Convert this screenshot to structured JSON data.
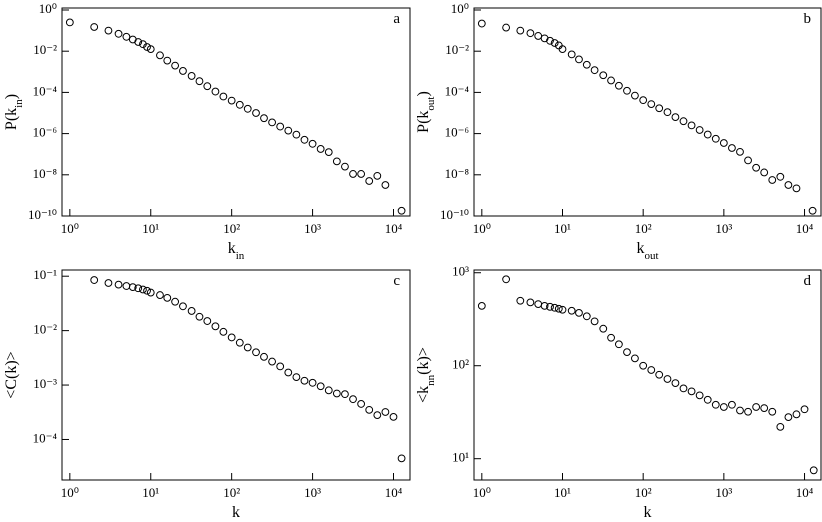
{
  "chart_data": [
    {
      "type": "scatter",
      "panel_label": "a",
      "xlabel": [
        "k",
        "in"
      ],
      "ylabel": [
        "P(k",
        "in",
        ")"
      ],
      "xscale": "log",
      "yscale": "log",
      "color": "#000000",
      "xlim": [
        0.8,
        16000
      ],
      "ylim": [
        1e-10,
        1.25
      ],
      "xticks": [
        {
          "value": 1,
          "label": "10⁰"
        },
        {
          "value": 10,
          "label": "10¹"
        },
        {
          "value": 100,
          "label": "10²"
        },
        {
          "value": 1000,
          "label": "10³"
        },
        {
          "value": 10000,
          "label": "10⁴"
        }
      ],
      "yticks": [
        {
          "value": 1e-10,
          "label": "10⁻¹⁰"
        },
        {
          "value": 1e-08,
          "label": "10⁻⁸"
        },
        {
          "value": 1e-06,
          "label": "10⁻⁶"
        },
        {
          "value": 0.0001,
          "label": "10⁻⁴"
        },
        {
          "value": 0.01,
          "label": "10⁻²"
        },
        {
          "value": 1,
          "label": "10⁰"
        }
      ],
      "x": [
        1,
        2,
        3,
        4,
        5,
        6,
        7,
        8,
        9,
        10,
        13,
        16,
        20,
        25,
        32,
        40,
        50,
        63,
        79,
        100,
        126,
        158,
        200,
        251,
        316,
        398,
        501,
        631,
        794,
        1000,
        1259,
        1585,
        1995,
        2512,
        3162,
        3981,
        5012,
        6310,
        7943,
        12589
      ],
      "values": [
        0.25,
        0.15,
        0.1,
        0.07,
        0.05,
        0.037,
        0.028,
        0.022,
        0.016,
        0.0126,
        0.0063,
        0.0035,
        0.002,
        0.0011,
        0.00063,
        0.00035,
        0.0002,
        0.00011,
        6.3e-05,
        4e-05,
        2.5e-05,
        1.6e-05,
        1e-05,
        5.6e-06,
        3.5e-06,
        2.2e-06,
        1.4e-06,
        8.9e-07,
        5e-07,
        3.2e-07,
        1.8e-07,
        1.26e-07,
        4.5e-08,
        2.5e-08,
        1.1e-08,
        1.1e-08,
        5e-09,
        8.9e-09,
        3.2e-09,
        1.8e-10
      ]
    },
    {
      "type": "scatter",
      "panel_label": "b",
      "xlabel": [
        "k",
        "out"
      ],
      "ylabel": [
        "P(k",
        "out",
        ")"
      ],
      "xscale": "log",
      "yscale": "log",
      "color": "#000000",
      "xlim": [
        0.8,
        16000
      ],
      "ylim": [
        1e-10,
        1.25
      ],
      "xticks": [
        {
          "value": 1,
          "label": "10⁰"
        },
        {
          "value": 10,
          "label": "10¹"
        },
        {
          "value": 100,
          "label": "10²"
        },
        {
          "value": 1000,
          "label": "10³"
        },
        {
          "value": 10000,
          "label": "10⁴"
        }
      ],
      "yticks": [
        {
          "value": 1e-10,
          "label": "10⁻¹⁰"
        },
        {
          "value": 1e-08,
          "label": "10⁻⁸"
        },
        {
          "value": 1e-06,
          "label": "10⁻⁶"
        },
        {
          "value": 0.0001,
          "label": "10⁻⁴"
        },
        {
          "value": 0.01,
          "label": "10⁻²"
        },
        {
          "value": 1,
          "label": "10⁰"
        }
      ],
      "x": [
        1,
        2,
        3,
        4,
        5,
        6,
        7,
        8,
        9,
        10,
        13,
        16,
        20,
        25,
        32,
        40,
        50,
        63,
        79,
        100,
        126,
        158,
        200,
        251,
        316,
        398,
        501,
        631,
        794,
        1000,
        1259,
        1585,
        1995,
        2512,
        3162,
        3981,
        5012,
        6310,
        7943,
        12589
      ],
      "values": [
        0.22,
        0.14,
        0.1,
        0.075,
        0.055,
        0.042,
        0.032,
        0.025,
        0.019,
        0.0126,
        0.007,
        0.004,
        0.0022,
        0.0012,
        0.00068,
        0.00038,
        0.00021,
        0.00012,
        7e-05,
        4.2e-05,
        2.7e-05,
        1.7e-05,
        1.1e-05,
        6.3e-06,
        4e-06,
        2.5e-06,
        1.5e-06,
        9e-07,
        5.6e-07,
        3.5e-07,
        2e-07,
        1.3e-07,
        5e-08,
        2.2e-08,
        1.3e-08,
        5.6e-09,
        8e-09,
        3.2e-09,
        2.2e-09,
        1.8e-10
      ]
    },
    {
      "type": "scatter",
      "panel_label": "c",
      "xlabel": [
        "k"
      ],
      "ylabel": [
        "<C(k)>"
      ],
      "xscale": "log",
      "yscale": "log",
      "color": "#000000",
      "xlim": [
        0.8,
        16000
      ],
      "ylim": [
        1.8e-05,
        0.13
      ],
      "xticks": [
        {
          "value": 1,
          "label": "10⁰"
        },
        {
          "value": 10,
          "label": "10¹"
        },
        {
          "value": 100,
          "label": "10²"
        },
        {
          "value": 1000,
          "label": "10³"
        },
        {
          "value": 10000,
          "label": "10⁴"
        }
      ],
      "yticks": [
        {
          "value": 0.0001,
          "label": "10⁻⁴"
        },
        {
          "value": 0.001,
          "label": "10⁻³"
        },
        {
          "value": 0.01,
          "label": "10⁻²"
        },
        {
          "value": 0.1,
          "label": "10⁻¹"
        }
      ],
      "x": [
        2,
        3,
        4,
        5,
        6,
        7,
        8,
        9,
        10,
        13,
        16,
        20,
        25,
        32,
        40,
        50,
        63,
        79,
        100,
        126,
        158,
        200,
        251,
        316,
        398,
        501,
        631,
        794,
        1000,
        1259,
        1585,
        1995,
        2512,
        3162,
        3981,
        5012,
        6310,
        7943,
        10000,
        12589
      ],
      "values": [
        0.085,
        0.075,
        0.07,
        0.066,
        0.063,
        0.06,
        0.057,
        0.054,
        0.05,
        0.045,
        0.04,
        0.034,
        0.028,
        0.023,
        0.018,
        0.015,
        0.012,
        0.0095,
        0.0075,
        0.006,
        0.0049,
        0.004,
        0.0033,
        0.0027,
        0.0022,
        0.0017,
        0.0014,
        0.0012,
        0.0011,
        0.00095,
        0.0008,
        0.0007,
        0.00068,
        0.00055,
        0.00045,
        0.00035,
        0.00028,
        0.00032,
        0.00026,
        4.5e-05
      ]
    },
    {
      "type": "scatter",
      "panel_label": "d",
      "xlabel": [
        "k"
      ],
      "ylabel": [
        "<k",
        "nn",
        "(k)>"
      ],
      "xscale": "log",
      "yscale": "log",
      "color": "#000000",
      "xlim": [
        0.8,
        16000
      ],
      "ylim": [
        5.9,
        1070
      ],
      "xticks": [
        {
          "value": 1,
          "label": "10⁰"
        },
        {
          "value": 10,
          "label": "10¹"
        },
        {
          "value": 100,
          "label": "10²"
        },
        {
          "value": 1000,
          "label": "10³"
        },
        {
          "value": 10000,
          "label": "10⁴"
        }
      ],
      "yticks": [
        {
          "value": 10,
          "label": "10¹"
        },
        {
          "value": 100,
          "label": "10²"
        },
        {
          "value": 1000,
          "label": "10³"
        }
      ],
      "x": [
        1,
        2,
        3,
        4,
        5,
        6,
        7,
        8,
        9,
        10,
        13,
        16,
        20,
        25,
        32,
        40,
        50,
        63,
        79,
        100,
        126,
        158,
        200,
        251,
        316,
        398,
        501,
        631,
        794,
        1000,
        1259,
        1585,
        1995,
        2512,
        3162,
        3981,
        5012,
        6310,
        7943,
        10000,
        13000
      ],
      "values": [
        440,
        850,
        500,
        480,
        460,
        440,
        430,
        420,
        410,
        400,
        390,
        370,
        340,
        300,
        250,
        200,
        170,
        140,
        120,
        100,
        90,
        80,
        72,
        65,
        57,
        53,
        48,
        43,
        38,
        36,
        38,
        33,
        32,
        36,
        35,
        32,
        22,
        28,
        30,
        34,
        7.5
      ]
    }
  ]
}
